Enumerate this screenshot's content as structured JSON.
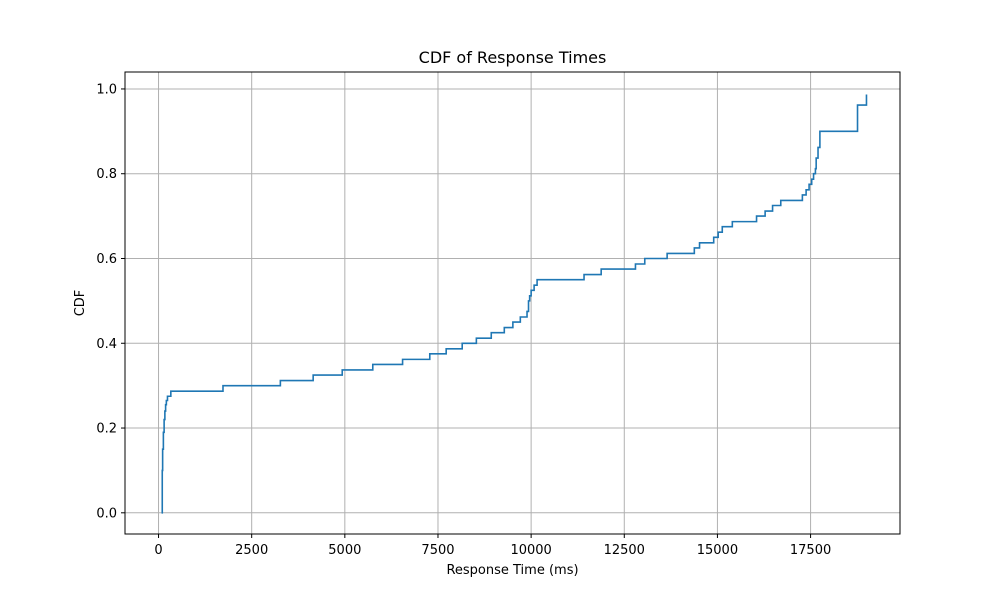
{
  "chart_data": {
    "type": "line",
    "step": "post",
    "title": "CDF of Response Times",
    "xlabel": "Response Time (ms)",
    "ylabel": "CDF",
    "xlim": [
      -900,
      19900
    ],
    "ylim": [
      -0.05,
      1.04
    ],
    "grid": true,
    "xticks": [
      0,
      2500,
      5000,
      7500,
      10000,
      12500,
      15000,
      17500
    ],
    "xtick_labels": [
      "0",
      "2500",
      "5000",
      "7500",
      "10000",
      "12500",
      "15000",
      "17500"
    ],
    "yticks": [
      0.0,
      0.2,
      0.4,
      0.6,
      0.8,
      1.0
    ],
    "ytick_labels": [
      "0.0",
      "0.2",
      "0.4",
      "0.6",
      "0.8",
      "1.0"
    ],
    "line_color": "#1f77b4",
    "series": [
      {
        "x": [
          80,
          100,
          110,
          130,
          150,
          170,
          190,
          210,
          240,
          270,
          330,
          1730,
          3270,
          4150,
          4930,
          5750,
          6550,
          7280,
          7720,
          8150,
          8530,
          8930,
          9280,
          9510,
          9710,
          9890,
          9930,
          9960,
          10000,
          10080,
          10160,
          11420,
          11880,
          12800,
          13050,
          13650,
          14380,
          14520,
          14900,
          15020,
          15130,
          15400,
          16050,
          16280,
          16480,
          16700,
          17280,
          17380,
          17460,
          17530,
          17580,
          17630,
          17650,
          17700,
          17750,
          18760,
          19000
        ],
        "y": [
          0.0,
          0.1,
          0.15,
          0.19,
          0.22,
          0.24,
          0.255,
          0.265,
          0.275,
          0.275,
          0.287,
          0.3,
          0.312,
          0.325,
          0.337,
          0.35,
          0.362,
          0.375,
          0.387,
          0.4,
          0.412,
          0.425,
          0.437,
          0.45,
          0.462,
          0.475,
          0.5,
          0.512,
          0.525,
          0.537,
          0.55,
          0.562,
          0.575,
          0.587,
          0.6,
          0.612,
          0.625,
          0.637,
          0.65,
          0.662,
          0.675,
          0.687,
          0.7,
          0.712,
          0.725,
          0.737,
          0.75,
          0.762,
          0.775,
          0.787,
          0.8,
          0.812,
          0.837,
          0.862,
          0.9,
          0.962,
          0.987
        ]
      }
    ]
  }
}
